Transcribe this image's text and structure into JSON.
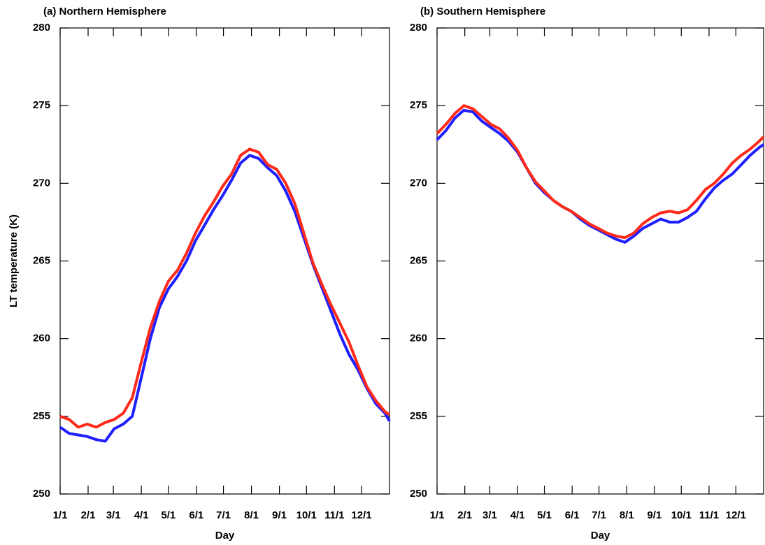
{
  "chart_data": [
    {
      "type": "line",
      "title": "(a) Northern Hemisphere",
      "y_label": "LT temperature (K)",
      "x_label": "Day",
      "xlim": [
        0,
        365
      ],
      "ylim": [
        250,
        280
      ],
      "yticks": [
        250,
        255,
        260,
        265,
        270,
        275,
        280
      ],
      "xticks": [
        {
          "value": 0,
          "label": "1/1"
        },
        {
          "value": 31,
          "label": "2/1"
        },
        {
          "value": 59,
          "label": "3/1"
        },
        {
          "value": 90,
          "label": "4/1"
        },
        {
          "value": 120,
          "label": "5/1"
        },
        {
          "value": 151,
          "label": "6/1"
        },
        {
          "value": 181,
          "label": "7/1"
        },
        {
          "value": 212,
          "label": "8/1"
        },
        {
          "value": 243,
          "label": "9/1"
        },
        {
          "value": 273,
          "label": "10/1"
        },
        {
          "value": 304,
          "label": "11/1"
        },
        {
          "value": 334,
          "label": "12/1"
        }
      ],
      "x": [
        0,
        10,
        20,
        30,
        40,
        50,
        60,
        70,
        80,
        90,
        100,
        110,
        120,
        130,
        140,
        150,
        160,
        170,
        180,
        190,
        200,
        210,
        220,
        230,
        240,
        250,
        260,
        270,
        280,
        290,
        300,
        310,
        320,
        330,
        340,
        350,
        360,
        365
      ],
      "series": [
        {
          "color": "#1f1fff",
          "values": [
            254.3,
            253.9,
            253.8,
            253.7,
            253.5,
            253.4,
            254.2,
            254.5,
            255.0,
            257.5,
            260.0,
            262.0,
            263.2,
            264.0,
            265.0,
            266.3,
            267.3,
            268.3,
            269.2,
            270.2,
            271.3,
            271.8,
            271.6,
            271.0,
            270.5,
            269.5,
            268.2,
            266.5,
            264.8,
            263.3,
            261.8,
            260.3,
            259.0,
            258.0,
            256.8,
            255.8,
            255.2,
            254.7
          ]
        },
        {
          "color": "#ff2a1a",
          "values": [
            255.0,
            254.8,
            254.3,
            254.5,
            254.3,
            254.6,
            254.8,
            255.2,
            256.2,
            258.5,
            260.7,
            262.4,
            263.7,
            264.4,
            265.5,
            266.8,
            267.9,
            268.8,
            269.8,
            270.6,
            271.8,
            272.2,
            272.0,
            271.2,
            270.9,
            270.0,
            268.7,
            266.8,
            264.9,
            263.5,
            262.2,
            261.0,
            259.8,
            258.3,
            256.9,
            256.0,
            255.3,
            255.1
          ]
        }
      ]
    },
    {
      "type": "line",
      "title": "(b) Southern Hemisphere",
      "x_label": "Day",
      "xlim": [
        0,
        365
      ],
      "ylim": [
        250,
        280
      ],
      "yticks": [
        250,
        255,
        260,
        265,
        270,
        275,
        280
      ],
      "xticks": [
        {
          "value": 0,
          "label": "1/1"
        },
        {
          "value": 31,
          "label": "2/1"
        },
        {
          "value": 59,
          "label": "3/1"
        },
        {
          "value": 90,
          "label": "4/1"
        },
        {
          "value": 120,
          "label": "5/1"
        },
        {
          "value": 151,
          "label": "6/1"
        },
        {
          "value": 181,
          "label": "7/1"
        },
        {
          "value": 212,
          "label": "8/1"
        },
        {
          "value": 243,
          "label": "9/1"
        },
        {
          "value": 273,
          "label": "10/1"
        },
        {
          "value": 304,
          "label": "11/1"
        },
        {
          "value": 334,
          "label": "12/1"
        }
      ],
      "x": [
        0,
        10,
        20,
        30,
        40,
        50,
        60,
        70,
        80,
        90,
        100,
        110,
        120,
        130,
        140,
        150,
        160,
        170,
        180,
        190,
        200,
        210,
        220,
        230,
        240,
        250,
        260,
        270,
        280,
        290,
        300,
        310,
        320,
        330,
        340,
        350,
        360,
        365
      ],
      "series": [
        {
          "color": "#1f1fff",
          "values": [
            272.8,
            273.4,
            274.2,
            274.7,
            274.6,
            274.0,
            273.6,
            273.2,
            272.7,
            272.0,
            271.0,
            270.0,
            269.4,
            268.9,
            268.5,
            268.2,
            267.7,
            267.3,
            267.0,
            266.7,
            266.4,
            266.2,
            266.6,
            267.1,
            267.4,
            267.7,
            267.5,
            267.5,
            267.8,
            268.2,
            269.0,
            269.7,
            270.2,
            270.6,
            271.2,
            271.8,
            272.3,
            272.5
          ]
        },
        {
          "color": "#ff2a1a",
          "values": [
            273.2,
            273.8,
            274.5,
            275.0,
            274.8,
            274.3,
            273.8,
            273.5,
            272.9,
            272.1,
            271.0,
            270.1,
            269.5,
            268.9,
            268.5,
            268.2,
            267.8,
            267.4,
            267.1,
            266.8,
            266.6,
            266.5,
            266.8,
            267.4,
            267.8,
            268.1,
            268.2,
            268.1,
            268.3,
            268.9,
            269.6,
            270.0,
            270.6,
            271.3,
            271.8,
            272.2,
            272.7,
            273.0
          ]
        }
      ]
    }
  ]
}
